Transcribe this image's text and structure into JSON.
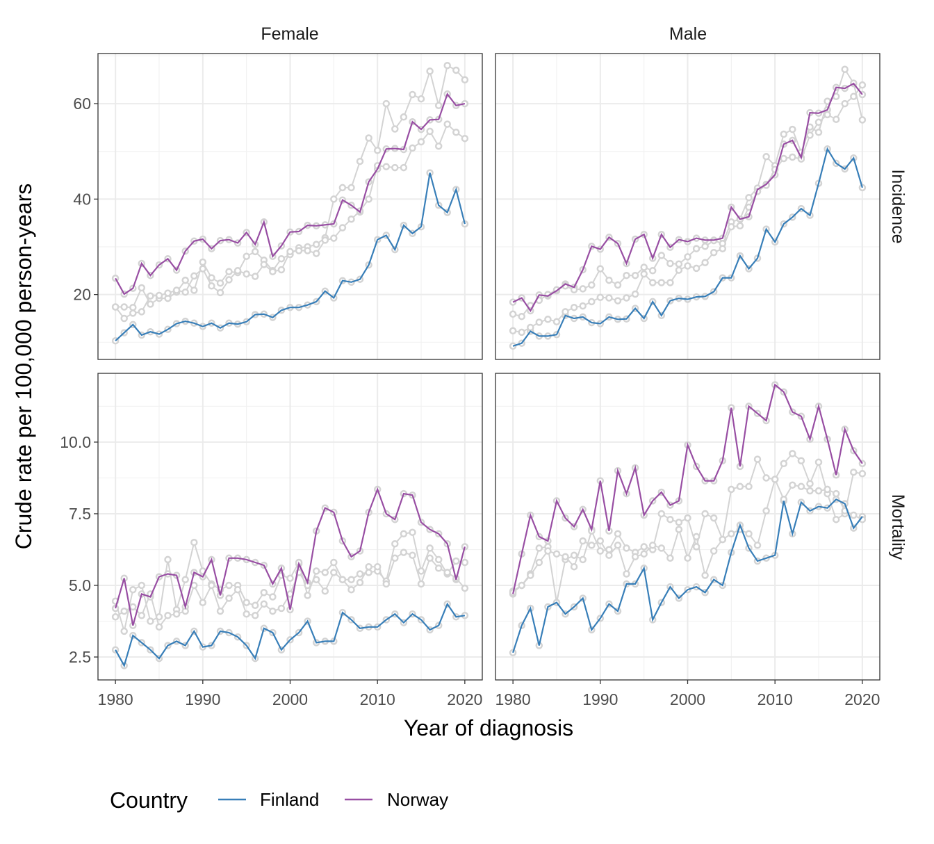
{
  "colors": {
    "Finland": "#377eb8",
    "Norway": "#984ea3",
    "other": "#d3d3d3"
  },
  "chart_data": {
    "type": "line",
    "facets": {
      "columns": [
        "Female",
        "Male"
      ],
      "rows": [
        "Incidence",
        "Mortality"
      ]
    },
    "xlabel": "Year of diagnosis",
    "ylabel": "Crude rate per 100,000 person-years",
    "x": [
      1980,
      1981,
      1982,
      1983,
      1984,
      1985,
      1986,
      1987,
      1988,
      1989,
      1990,
      1991,
      1992,
      1993,
      1994,
      1995,
      1996,
      1997,
      1998,
      1999,
      2000,
      2001,
      2002,
      2003,
      2004,
      2005,
      2006,
      2007,
      2008,
      2009,
      2010,
      2011,
      2012,
      2013,
      2014,
      2015,
      2016,
      2017,
      2018,
      2019,
      2020
    ],
    "xlim": [
      1978,
      2022
    ],
    "x_ticks": [
      "1980",
      "1990",
      "2000",
      "2010",
      "2020"
    ],
    "x_tick_values": [
      1980,
      1990,
      2000,
      2010,
      2020
    ],
    "rows_info": {
      "Incidence": {
        "ylim": [
          6.4,
          70.5
        ],
        "y_ticks": [
          "20",
          "40",
          "60"
        ],
        "y_tick_values": [
          20,
          40,
          60
        ]
      },
      "Mortality": {
        "ylim": [
          1.7,
          12.4
        ],
        "y_ticks": [
          "2.5",
          "5.0",
          "7.5",
          "10.0"
        ],
        "y_tick_values": [
          2.5,
          5.0,
          7.5,
          10.0
        ]
      }
    },
    "legend": {
      "title": "Country",
      "position": "bottom",
      "entries": [
        "Finland",
        "Norway"
      ]
    },
    "panels": [
      {
        "col": "Female",
        "row": "Incidence",
        "series": [
          {
            "name": "Finland",
            "highlight": true,
            "values": [
              10.3,
              12.0,
              13.7,
              11.5,
              12.2,
              11.7,
              12.7,
              13.9,
              14.4,
              14.0,
              13.3,
              14.0,
              13.0,
              14.0,
              13.8,
              14.3,
              15.8,
              15.9,
              15.2,
              16.7,
              17.3,
              17.3,
              17.8,
              18.5,
              20.7,
              19.3,
              22.9,
              22.6,
              23.2,
              26.2,
              31.5,
              32.4,
              29.4,
              34.5,
              32.8,
              34.2,
              45.5,
              38.7,
              37.2,
              42.0,
              34.8
            ]
          },
          {
            "name": "Norway",
            "highlight": true,
            "values": [
              23.4,
              20.1,
              21.3,
              26.5,
              24.0,
              26.2,
              27.5,
              25.1,
              29.1,
              31.2,
              31.6,
              29.6,
              31.3,
              31.5,
              30.8,
              33.0,
              30.5,
              35.2,
              28.0,
              30.2,
              33.1,
              33.2,
              34.5,
              34.4,
              34.6,
              34.8,
              39.8,
              38.7,
              37.3,
              43.6,
              46.3,
              50.5,
              50.6,
              50.4,
              56.2,
              54.6,
              56.6,
              56.7,
              62.0,
              59.6,
              60.0
            ]
          },
          {
            "name": "",
            "highlight": false,
            "values": [
              17.4,
              17.4,
              17.3,
              21.4,
              18.0,
              19.2,
              19.2,
              20.5,
              23.0,
              20.9,
              26.8,
              23.5,
              22.4,
              24.8,
              24.6,
              28.0,
              29.0,
              27.2,
              25.0,
              27.5,
              28.4,
              29.8,
              30.0,
              30.5,
              31.9,
              40.0,
              42.4,
              42.4,
              47.9,
              52.8,
              50.2,
              60.0,
              54.7,
              57.2,
              61.9,
              61.0,
              66.8,
              59.6,
              68.0,
              67.0,
              65.0
            ]
          },
          {
            "name": "",
            "highlight": false,
            "values": [
              17.4,
              15.0,
              16.1,
              16.4,
              19.7,
              19.8,
              20.3,
              20.9,
              20.5,
              23.9,
              25.4,
              21.8,
              20.4,
              23.1,
              25.0,
              24.3,
              23.8,
              26.3,
              24.8,
              25.2,
              29.0,
              29.2,
              29.2,
              28.6,
              31.4,
              31.8,
              34.0,
              35.8,
              37.5,
              40.0,
              47.0,
              46.8,
              46.6,
              46.6,
              50.7,
              52.0,
              54.2,
              51.1,
              55.7,
              54.0,
              52.7
            ]
          }
        ]
      },
      {
        "col": "Male",
        "row": "Incidence",
        "series": [
          {
            "name": "Finland",
            "highlight": true,
            "values": [
              9.2,
              9.8,
              12.3,
              11.3,
              11.3,
              11.6,
              15.6,
              15.0,
              15.3,
              14.1,
              13.9,
              15.3,
              14.8,
              14.9,
              17.1,
              15.0,
              18.5,
              15.6,
              18.7,
              19.2,
              19.0,
              19.5,
              19.6,
              20.6,
              23.5,
              23.5,
              28.1,
              25.4,
              27.6,
              33.7,
              31.0,
              34.8,
              36.2,
              38.0,
              36.6,
              43.3,
              50.5,
              47.5,
              46.3,
              48.6,
              42.4
            ]
          },
          {
            "name": "Norway",
            "highlight": true,
            "values": [
              18.4,
              19.3,
              16.6,
              19.9,
              19.7,
              20.8,
              22.2,
              21.5,
              25.2,
              30.1,
              29.5,
              32.0,
              30.7,
              26.5,
              31.6,
              32.6,
              27.6,
              32.6,
              29.9,
              31.5,
              31.1,
              31.8,
              31.4,
              31.4,
              31.8,
              38.3,
              35.8,
              36.3,
              42.0,
              43.1,
              45.1,
              51.5,
              52.3,
              48.7,
              58.1,
              58.0,
              58.7,
              63.4,
              63.2,
              64.2,
              61.9
            ]
          },
          {
            "name": "",
            "highlight": false,
            "values": [
              15.9,
              15.4,
              17.7,
              18.8,
              20.0,
              21.0,
              21.8,
              21.0,
              21.2,
              22.0,
              25.4,
              23.0,
              22.0,
              24.0,
              24.0,
              25.7,
              25.0,
              28.2,
              26.5,
              26.4,
              27.9,
              29.6,
              30.1,
              31.3,
              30.7,
              35.2,
              35.8,
              40.3,
              42.3,
              48.9,
              47.0,
              53.6,
              54.6,
              49.8,
              55.1,
              54.0,
              60.5,
              61.5,
              67.2,
              64.3,
              56.6
            ]
          },
          {
            "name": "",
            "highlight": false,
            "values": [
              12.4,
              12.1,
              13.1,
              14.2,
              14.8,
              14.3,
              16.4,
              17.3,
              17.6,
              18.5,
              19.4,
              19.3,
              18.7,
              19.3,
              20.1,
              24.3,
              22.5,
              22.5,
              22.5,
              25.1,
              26.0,
              25.5,
              26.7,
              28.8,
              29.6,
              34.2,
              34.4,
              38.3,
              41.6,
              42.9,
              46.2,
              48.5,
              48.8,
              48.4,
              53.4,
              56.1,
              57.7,
              56.7,
              60.0,
              61.5,
              63.9
            ]
          }
        ]
      },
      {
        "col": "Female",
        "row": "Mortality",
        "series": [
          {
            "name": "Finland",
            "highlight": true,
            "values": [
              2.75,
              2.2,
              3.25,
              3.0,
              2.75,
              2.45,
              2.9,
              3.05,
              2.9,
              3.4,
              2.85,
              2.9,
              3.4,
              3.35,
              3.2,
              2.9,
              2.45,
              3.5,
              3.35,
              2.75,
              3.1,
              3.35,
              3.75,
              3.0,
              3.05,
              3.05,
              4.05,
              3.8,
              3.5,
              3.55,
              3.55,
              3.8,
              4.0,
              3.7,
              4.0,
              3.8,
              3.45,
              3.6,
              4.35,
              3.9,
              3.95
            ]
          },
          {
            "name": "Norway",
            "highlight": true,
            "values": [
              4.2,
              5.25,
              3.6,
              4.7,
              4.6,
              5.3,
              5.4,
              5.35,
              4.25,
              5.45,
              5.3,
              5.9,
              4.65,
              5.95,
              5.95,
              5.9,
              5.8,
              5.7,
              5.05,
              5.6,
              4.15,
              5.75,
              5.1,
              6.9,
              7.7,
              7.55,
              6.55,
              6.0,
              6.2,
              7.55,
              8.35,
              7.5,
              7.3,
              8.2,
              8.15,
              7.2,
              6.95,
              6.8,
              6.45,
              5.2,
              6.35
            ]
          },
          {
            "name": "",
            "highlight": false,
            "values": [
              4.45,
              3.4,
              4.85,
              5.0,
              3.75,
              3.9,
              5.9,
              4.15,
              5.2,
              6.5,
              5.5,
              5.05,
              4.85,
              5.0,
              5.0,
              4.4,
              4.3,
              4.75,
              4.6,
              5.35,
              5.25,
              5.8,
              4.65,
              5.5,
              5.45,
              5.8,
              5.2,
              5.2,
              5.4,
              5.45,
              5.5,
              5.15,
              6.45,
              6.8,
              6.85,
              5.5,
              6.3,
              5.9,
              5.4,
              5.85,
              5.8
            ]
          },
          {
            "name": "",
            "highlight": false,
            "values": [
              3.9,
              4.1,
              4.25,
              3.95,
              4.7,
              3.55,
              3.95,
              4.0,
              4.1,
              5.0,
              4.4,
              5.0,
              4.1,
              4.55,
              4.85,
              4.0,
              3.95,
              4.35,
              4.1,
              4.2,
              4.7,
              5.45,
              5.0,
              5.2,
              4.8,
              5.45,
              5.2,
              4.85,
              5.1,
              5.65,
              5.65,
              5.05,
              5.95,
              6.15,
              6.05,
              5.05,
              5.95,
              5.6,
              5.45,
              5.25,
              4.9
            ]
          }
        ]
      },
      {
        "col": "Male",
        "row": "Mortality",
        "series": [
          {
            "name": "Finland",
            "highlight": true,
            "values": [
              2.65,
              3.6,
              4.2,
              2.9,
              4.25,
              4.4,
              4.0,
              4.25,
              4.55,
              3.45,
              3.85,
              4.35,
              4.1,
              5.05,
              5.05,
              5.6,
              3.8,
              4.4,
              4.95,
              4.55,
              4.85,
              4.95,
              4.75,
              5.2,
              5.0,
              6.15,
              7.1,
              6.3,
              5.85,
              5.95,
              6.05,
              7.95,
              6.8,
              7.9,
              7.6,
              7.75,
              7.7,
              8.0,
              7.85,
              7.0,
              7.4
            ]
          },
          {
            "name": "Norway",
            "highlight": true,
            "values": [
              4.7,
              6.1,
              7.45,
              6.7,
              6.55,
              7.95,
              7.35,
              7.05,
              7.65,
              6.95,
              8.65,
              6.9,
              9.0,
              8.2,
              9.1,
              7.45,
              7.95,
              8.25,
              7.8,
              7.95,
              9.9,
              9.15,
              8.65,
              8.65,
              9.35,
              11.2,
              9.15,
              11.25,
              11.0,
              10.75,
              12.0,
              11.75,
              11.05,
              10.9,
              10.1,
              11.25,
              10.1,
              8.85,
              10.45,
              9.7,
              9.25
            ]
          },
          {
            "name": "",
            "highlight": false,
            "values": [
              4.8,
              5.0,
              5.4,
              6.3,
              6.35,
              4.4,
              5.9,
              6.05,
              5.9,
              6.9,
              6.2,
              6.25,
              6.8,
              6.3,
              6.15,
              6.35,
              6.25,
              7.5,
              7.3,
              7.2,
              7.35,
              6.35,
              7.5,
              7.35,
              6.6,
              8.35,
              8.45,
              8.45,
              9.4,
              8.75,
              8.7,
              9.25,
              9.6,
              9.35,
              8.55,
              9.3,
              8.2,
              7.3,
              7.5,
              8.95,
              8.9
            ]
          },
          {
            "name": "",
            "highlight": false,
            "values": [
              4.75,
              5.0,
              5.35,
              5.8,
              6.2,
              6.1,
              6.0,
              5.65,
              6.55,
              6.4,
              6.55,
              6.05,
              6.4,
              5.4,
              6.0,
              6.1,
              6.4,
              6.3,
              5.95,
              6.95,
              5.95,
              6.7,
              5.35,
              6.2,
              6.6,
              6.8,
              6.95,
              6.8,
              6.4,
              7.6,
              8.7,
              8.0,
              8.5,
              8.45,
              8.3,
              8.3,
              8.35,
              8.2,
              7.6,
              7.45,
              7.3
            ]
          }
        ]
      }
    ]
  }
}
